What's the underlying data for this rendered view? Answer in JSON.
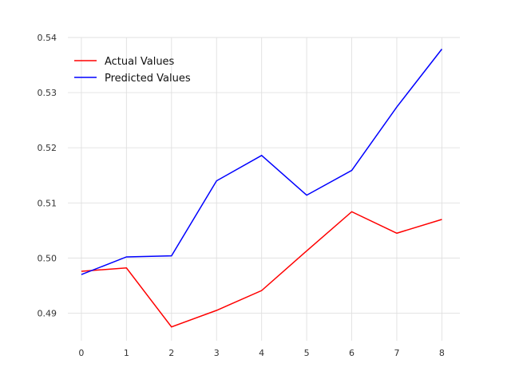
{
  "chart_data": {
    "type": "line",
    "title": "",
    "xlabel": "",
    "ylabel": "",
    "x": [
      0,
      1,
      2,
      3,
      4,
      5,
      6,
      7,
      8
    ],
    "xlim": [
      -0.3,
      8.4
    ],
    "ylim": [
      0.485,
      0.54
    ],
    "x_ticks": [
      "0",
      "1",
      "2",
      "3",
      "4",
      "5",
      "6",
      "7",
      "8"
    ],
    "y_ticks": [
      "0.49",
      "0.50",
      "0.51",
      "0.52",
      "0.53",
      "0.54"
    ],
    "y_tick_values": [
      0.49,
      0.5,
      0.51,
      0.52,
      0.53,
      0.54
    ],
    "grid": true,
    "legend_position": "top-left",
    "series": [
      {
        "name": "Actual Values",
        "color": "#ff0000",
        "values": [
          0.4976,
          0.4982,
          0.4875,
          0.4905,
          0.4941,
          0.5013,
          0.5084,
          0.5045,
          0.507
        ]
      },
      {
        "name": "Predicted Values",
        "color": "#0000ff",
        "values": [
          0.497,
          0.5002,
          0.5004,
          0.514,
          0.5186,
          0.5114,
          0.5159,
          0.5274,
          0.5379
        ]
      }
    ]
  }
}
